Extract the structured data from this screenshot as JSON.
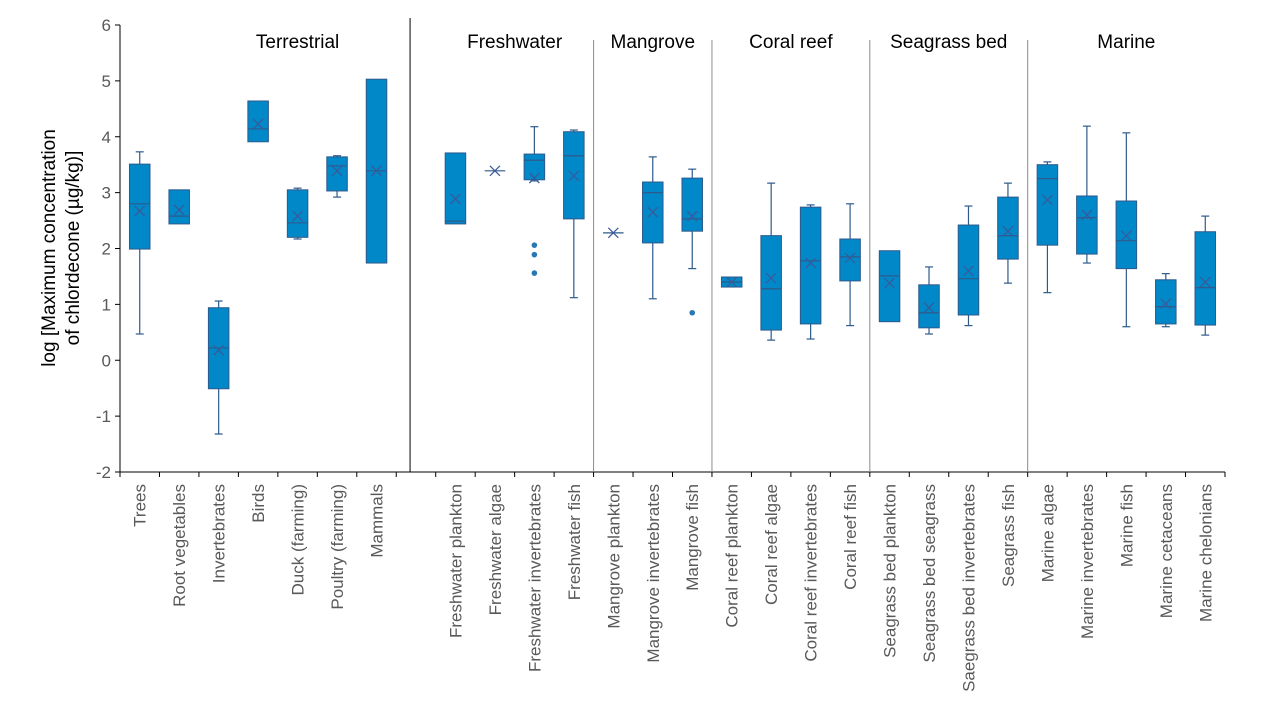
{
  "chart_data": {
    "type": "boxplot",
    "title": "",
    "ylabel_lines": [
      "log [Maximum concentration",
      "of chlordecone  (µg/kg)]"
    ],
    "xlabel": "",
    "ylim": [
      -2,
      6
    ],
    "yticks": [
      -2,
      -1,
      0,
      1,
      2,
      3,
      4,
      5,
      6
    ],
    "grid": false,
    "legend": "none",
    "colors": {
      "box_fill": "#0088c8",
      "box_stroke": "#2e5a8c",
      "whisker": "#2e5a8c",
      "mean_marker": "#3b5998",
      "outlier": "#2878b4",
      "axis": "#000000",
      "separator_major": "#000000",
      "separator_minor": "#8c8c8c"
    },
    "groups": [
      {
        "name": "Terrestrial",
        "categories": [
          "Trees",
          "Root vegetables",
          "Invertebrates",
          "Birds",
          "Duck (farming)",
          "Poultry (farming)",
          "Mammals"
        ],
        "trailing_empty_slots": 1
      },
      {
        "name": "Freshwater",
        "categories": [
          "Freshwater plankton",
          "Freshwater algae",
          "Freshwater invertebrates",
          "Freshwater fish"
        ],
        "trailing_empty_slots": 0
      },
      {
        "name": "Mangrove",
        "categories": [
          "Mangrove plankton",
          "Mangrove invertebrates",
          "Mangrove fish"
        ],
        "trailing_empty_slots": 0
      },
      {
        "name": "Coral reef",
        "categories": [
          "Coral reef plankton",
          "Coral reef algae",
          "Coral reef invertebrates",
          "Coral reef fish"
        ],
        "trailing_empty_slots": 0
      },
      {
        "name": "Seagrass bed",
        "categories": [
          "Seagrass bed plankton",
          "Seagrass bed seagrass",
          "Saegrass bed invertebrates",
          "Seagrass fish"
        ],
        "trailing_empty_slots": 0
      },
      {
        "name": "Marine",
        "categories": [
          "Marine algae",
          "Marine invertebrates",
          "Marine fish",
          "Marine cetaceans",
          "Marine chelonians"
        ],
        "trailing_empty_slots": 0
      }
    ],
    "boxes": [
      {
        "category": "Trees",
        "min": 0.47,
        "q1": 1.99,
        "median": 2.8,
        "q3": 3.51,
        "max": 3.73,
        "mean": 2.67,
        "outliers": []
      },
      {
        "category": "Root vegetables",
        "min": 2.44,
        "q1": 2.44,
        "median": 2.58,
        "q3": 3.05,
        "max": 3.05,
        "mean": 2.69,
        "outliers": []
      },
      {
        "category": "Invertebrates",
        "min": -1.32,
        "q1": -0.51,
        "median": 0.22,
        "q3": 0.94,
        "max": 1.06,
        "mean": 0.18,
        "outliers": []
      },
      {
        "category": "Birds",
        "min": 3.91,
        "q1": 3.91,
        "median": 4.14,
        "q3": 4.64,
        "max": 4.64,
        "mean": 4.23,
        "outliers": []
      },
      {
        "category": "Duck (farming)",
        "min": 2.17,
        "q1": 2.2,
        "median": 2.46,
        "q3": 3.05,
        "max": 3.08,
        "mean": 2.58,
        "outliers": []
      },
      {
        "category": "Poultry (farming)",
        "min": 2.92,
        "q1": 3.03,
        "median": 3.48,
        "q3": 3.64,
        "max": 3.66,
        "mean": 3.39,
        "outliers": []
      },
      {
        "category": "Mammals",
        "min": 1.74,
        "q1": 1.74,
        "median": 3.39,
        "q3": 5.03,
        "max": 5.03,
        "mean": 3.39,
        "outliers": []
      },
      {
        "category": "Freshwater plankton",
        "min": 2.44,
        "q1": 2.44,
        "median": 2.49,
        "q3": 3.71,
        "max": 3.71,
        "mean": 2.89,
        "outliers": []
      },
      {
        "category": "Freshwater algae",
        "min": 3.39,
        "q1": 3.39,
        "median": 3.39,
        "q3": 3.39,
        "max": 3.39,
        "mean": 3.39,
        "outliers": []
      },
      {
        "category": "Freshwater invertebrates",
        "min": 3.21,
        "q1": 3.23,
        "median": 3.58,
        "q3": 3.69,
        "max": 4.18,
        "mean": 3.26,
        "outliers": [
          2.06,
          1.89,
          1.56
        ]
      },
      {
        "category": "Freshwater fish",
        "min": 1.12,
        "q1": 2.53,
        "median": 3.66,
        "q3": 4.09,
        "max": 4.12,
        "mean": 3.3,
        "outliers": []
      },
      {
        "category": "Mangrove plankton",
        "min": 2.28,
        "q1": 2.28,
        "median": 2.28,
        "q3": 2.28,
        "max": 2.28,
        "mean": 2.28,
        "outliers": []
      },
      {
        "category": "Mangrove invertebrates",
        "min": 1.1,
        "q1": 2.1,
        "median": 3.0,
        "q3": 3.19,
        "max": 3.64,
        "mean": 2.65,
        "outliers": []
      },
      {
        "category": "Mangrove fish",
        "min": 1.64,
        "q1": 2.31,
        "median": 2.53,
        "q3": 3.26,
        "max": 3.42,
        "mean": 2.58,
        "outliers": [
          0.85
        ]
      },
      {
        "category": "Coral reef plankton",
        "min": 1.31,
        "q1": 1.31,
        "median": 1.4,
        "q3": 1.49,
        "max": 1.49,
        "mean": 1.4,
        "outliers": []
      },
      {
        "category": "Coral reef algae",
        "min": 0.36,
        "q1": 0.54,
        "median": 1.28,
        "q3": 2.23,
        "max": 3.17,
        "mean": 1.47,
        "outliers": []
      },
      {
        "category": "Coral reef invertebrates",
        "min": 0.38,
        "q1": 0.65,
        "median": 1.78,
        "q3": 2.74,
        "max": 2.78,
        "mean": 1.74,
        "outliers": []
      },
      {
        "category": "Coral reef fish",
        "min": 0.62,
        "q1": 1.42,
        "median": 1.85,
        "q3": 2.17,
        "max": 2.8,
        "mean": 1.83,
        "outliers": []
      },
      {
        "category": "Seagrass bed plankton",
        "min": 0.69,
        "q1": 0.69,
        "median": 1.51,
        "q3": 1.96,
        "max": 1.96,
        "mean": 1.38,
        "outliers": []
      },
      {
        "category": "Seagrass bed seagrass",
        "min": 0.47,
        "q1": 0.58,
        "median": 0.85,
        "q3": 1.35,
        "max": 1.67,
        "mean": 0.94,
        "outliers": []
      },
      {
        "category": "Saegrass bed invertebrates",
        "min": 0.62,
        "q1": 0.81,
        "median": 1.46,
        "q3": 2.42,
        "max": 2.76,
        "mean": 1.6,
        "outliers": []
      },
      {
        "category": "Seagrass fish",
        "min": 1.38,
        "q1": 1.81,
        "median": 2.23,
        "q3": 2.92,
        "max": 3.17,
        "mean": 2.31,
        "outliers": []
      },
      {
        "category": "Marine algae",
        "min": 1.21,
        "q1": 2.06,
        "median": 3.25,
        "q3": 3.5,
        "max": 3.55,
        "mean": 2.87,
        "outliers": []
      },
      {
        "category": "Marine invertebrates",
        "min": 1.74,
        "q1": 1.9,
        "median": 2.55,
        "q3": 2.94,
        "max": 4.19,
        "mean": 2.6,
        "outliers": []
      },
      {
        "category": "Marine fish",
        "min": 0.6,
        "q1": 1.64,
        "median": 2.14,
        "q3": 2.85,
        "max": 4.07,
        "mean": 2.23,
        "outliers": []
      },
      {
        "category": "Marine cetaceans",
        "min": 0.6,
        "q1": 0.65,
        "median": 0.96,
        "q3": 1.44,
        "max": 1.55,
        "mean": 1.01,
        "outliers": []
      },
      {
        "category": "Marine chelonians",
        "min": 0.45,
        "q1": 0.63,
        "median": 1.3,
        "q3": 2.3,
        "max": 2.58,
        "mean": 1.4,
        "outliers": []
      }
    ]
  }
}
